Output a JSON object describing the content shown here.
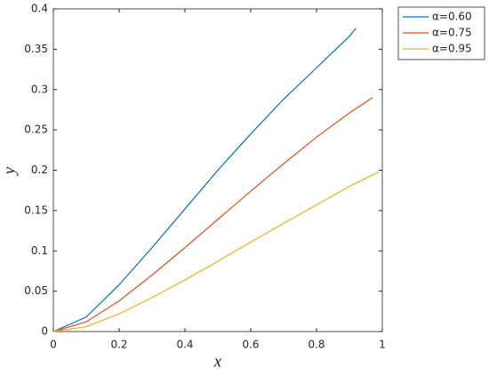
{
  "chart_data": {
    "type": "line",
    "xlabel": "x",
    "ylabel": "y",
    "xlim": [
      0,
      1
    ],
    "xticks": [
      0,
      0.2,
      0.4,
      0.6,
      0.8,
      1
    ],
    "ylim": [
      0,
      0.4
    ],
    "yticks": [
      0,
      0.05,
      0.1,
      0.15,
      0.2,
      0.25,
      0.3,
      0.35,
      0.4
    ],
    "legend": "outside-top-right",
    "series": [
      {
        "name": "α=0.60",
        "color": "#0072bd",
        "x": [
          0,
          0.1,
          0.2,
          0.3,
          0.4,
          0.5,
          0.6,
          0.7,
          0.8,
          0.9,
          0.92
        ],
        "values": [
          0,
          0.018,
          0.058,
          0.104,
          0.152,
          0.2,
          0.245,
          0.288,
          0.327,
          0.366,
          0.376
        ]
      },
      {
        "name": "α=0.75",
        "color": "#d95319",
        "x": [
          0,
          0.1,
          0.2,
          0.3,
          0.4,
          0.5,
          0.6,
          0.7,
          0.8,
          0.9,
          0.97
        ],
        "values": [
          0,
          0.012,
          0.038,
          0.07,
          0.104,
          0.139,
          0.174,
          0.208,
          0.241,
          0.271,
          0.29
        ]
      },
      {
        "name": "α=0.95",
        "color": "#edb120",
        "x": [
          0,
          0.1,
          0.2,
          0.3,
          0.4,
          0.5,
          0.6,
          0.7,
          0.8,
          0.9,
          0.99
        ],
        "values": [
          0,
          0.006,
          0.022,
          0.042,
          0.064,
          0.087,
          0.111,
          0.134,
          0.157,
          0.18,
          0.198
        ]
      }
    ]
  }
}
